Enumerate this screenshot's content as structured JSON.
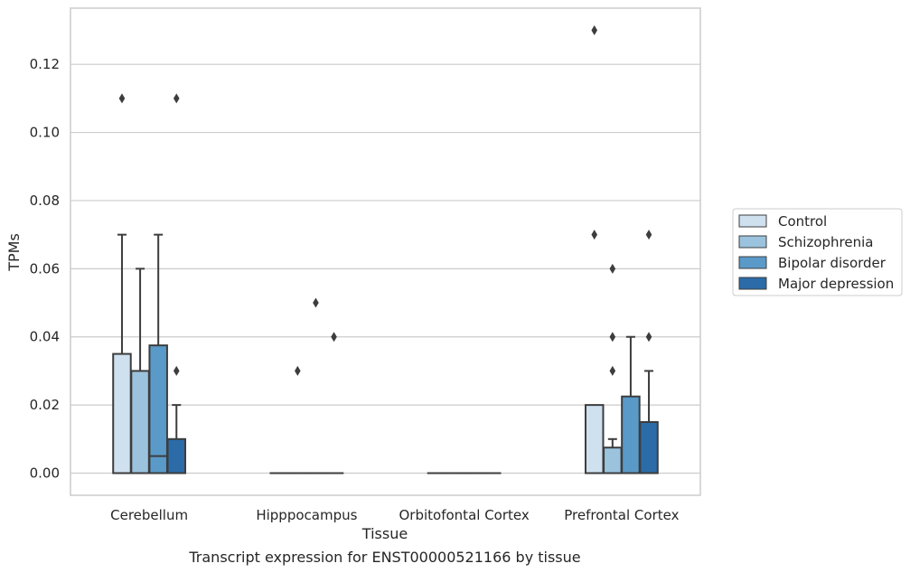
{
  "caption": "Transcript expression for ENST00000521166 by tissue",
  "chart_data": {
    "type": "box",
    "xlabel": "Tissue",
    "ylabel": "TPMs",
    "ylim": [
      -0.0065,
      0.1365
    ],
    "yticks": [
      "0.00",
      "0.02",
      "0.04",
      "0.06",
      "0.08",
      "0.10",
      "0.12"
    ],
    "categories": [
      "Cerebellum",
      "Hipppocampus",
      "Orbitofontal Cortex",
      "Prefrontal Cortex"
    ],
    "grid": "horizontal",
    "legend_position": "right",
    "series": [
      {
        "name": "Control",
        "color": "#cfe0ef",
        "boxes": [
          {
            "q1": 0.0,
            "median": 0.0,
            "q3": 0.035,
            "whisker_low": 0.0,
            "whisker_high": 0.07,
            "outliers": [
              0.11
            ]
          },
          {
            "q1": 0.0,
            "median": 0.0,
            "q3": 0.0,
            "whisker_low": 0.0,
            "whisker_high": 0.0,
            "outliers": []
          },
          {
            "q1": 0.0,
            "median": 0.0,
            "q3": 0.0,
            "whisker_low": 0.0,
            "whisker_high": 0.0,
            "outliers": []
          },
          {
            "q1": 0.0,
            "median": 0.0,
            "q3": 0.02,
            "whisker_low": 0.0,
            "whisker_high": 0.02,
            "outliers": [
              0.13,
              0.07
            ]
          }
        ]
      },
      {
        "name": "Schizophrenia",
        "color": "#9bc3de",
        "boxes": [
          {
            "q1": 0.0,
            "median": 0.0,
            "q3": 0.03,
            "whisker_low": 0.0,
            "whisker_high": 0.06,
            "outliers": []
          },
          {
            "q1": 0.0,
            "median": 0.0,
            "q3": 0.0,
            "whisker_low": 0.0,
            "whisker_high": 0.0,
            "outliers": [
              0.03
            ]
          },
          {
            "q1": 0.0,
            "median": 0.0,
            "q3": 0.0,
            "whisker_low": 0.0,
            "whisker_high": 0.0,
            "outliers": []
          },
          {
            "q1": 0.0,
            "median": 0.0,
            "q3": 0.0075,
            "whisker_low": 0.0,
            "whisker_high": 0.01,
            "outliers": [
              0.06,
              0.04,
              0.03
            ]
          }
        ]
      },
      {
        "name": "Bipolar disorder",
        "color": "#5a9ac8",
        "boxes": [
          {
            "q1": 0.0,
            "median": 0.005,
            "q3": 0.0375,
            "whisker_low": 0.0,
            "whisker_high": 0.07,
            "outliers": []
          },
          {
            "q1": 0.0,
            "median": 0.0,
            "q3": 0.0,
            "whisker_low": 0.0,
            "whisker_high": 0.0,
            "outliers": [
              0.05
            ]
          },
          {
            "q1": 0.0,
            "median": 0.0,
            "q3": 0.0,
            "whisker_low": 0.0,
            "whisker_high": 0.0,
            "outliers": []
          },
          {
            "q1": 0.0,
            "median": 0.0,
            "q3": 0.0225,
            "whisker_low": 0.0,
            "whisker_high": 0.04,
            "outliers": []
          }
        ]
      },
      {
        "name": "Major depression",
        "color": "#2b6ba8",
        "boxes": [
          {
            "q1": 0.0,
            "median": 0.0,
            "q3": 0.01,
            "whisker_low": 0.0,
            "whisker_high": 0.02,
            "outliers": [
              0.11,
              0.03
            ]
          },
          {
            "q1": 0.0,
            "median": 0.0,
            "q3": 0.0,
            "whisker_low": 0.0,
            "whisker_high": 0.0,
            "outliers": [
              0.04
            ]
          },
          {
            "q1": 0.0,
            "median": 0.0,
            "q3": 0.0,
            "whisker_low": 0.0,
            "whisker_high": 0.0,
            "outliers": []
          },
          {
            "q1": 0.0,
            "median": 0.0,
            "q3": 0.015,
            "whisker_low": 0.0,
            "whisker_high": 0.03,
            "outliers": [
              0.07,
              0.04
            ]
          }
        ]
      }
    ]
  }
}
